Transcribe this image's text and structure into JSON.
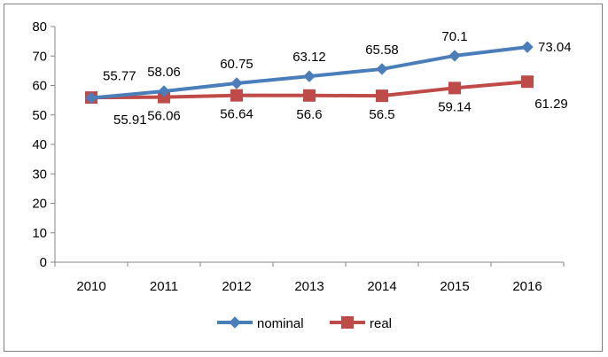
{
  "chart_data": {
    "type": "line",
    "title": "",
    "xlabel": "",
    "ylabel": "",
    "categories": [
      "2010",
      "2011",
      "2012",
      "2013",
      "2014",
      "2015",
      "2016"
    ],
    "ylim": [
      0,
      80
    ],
    "yticks": [
      0,
      10,
      20,
      30,
      40,
      50,
      60,
      70,
      80
    ],
    "grid": false,
    "legend_position": "bottom",
    "series": [
      {
        "name": "nominal",
        "color": "#4a7ebb",
        "marker": "diamond",
        "values": [
          55.77,
          58.06,
          60.75,
          63.12,
          65.58,
          70.1,
          73.04
        ],
        "labels": [
          "55.77",
          "58.06",
          "60.75",
          "63.12",
          "65.58",
          "70.1",
          "73.04"
        ]
      },
      {
        "name": "real",
        "color": "#be4b48",
        "marker": "square",
        "values": [
          55.91,
          56.06,
          56.64,
          56.6,
          56.5,
          59.14,
          61.29
        ],
        "labels": [
          "55.91",
          "56.06",
          "56.64",
          "56.6",
          "56.5",
          "59.14",
          "61.29"
        ]
      }
    ]
  }
}
